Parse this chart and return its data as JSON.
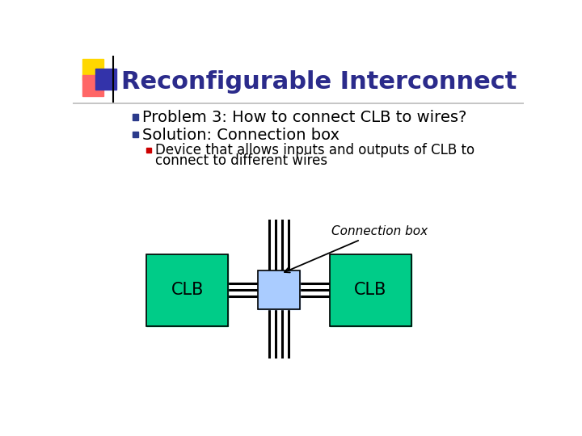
{
  "title": "Reconfigurable Interconnect",
  "title_color": "#2B2B8B",
  "title_fontsize": 22,
  "bg_color": "#FFFFFF",
  "bullet1": "Problem 3: How to connect CLB to wires?",
  "bullet2": "Solution: Connection box",
  "sub_bullet1": "Device that allows inputs and outputs of CLB to",
  "sub_bullet2": "connect to different wires",
  "bullet_color": "#000000",
  "bullet_marker_color1": "#2B3A8B",
  "bullet_marker_color2": "#CC0000",
  "clb_color": "#00CC88",
  "conn_box_color": "#AACCFF",
  "conn_box_border": "#000000",
  "clb_border": "#000000",
  "wire_color": "#000000",
  "annotation_text": "Connection box",
  "annotation_color": "#000000",
  "clb_label": "CLB",
  "yellow_sq": "#FFD700",
  "red_sq": "#FF6666",
  "blue_sq": "#3333AA"
}
